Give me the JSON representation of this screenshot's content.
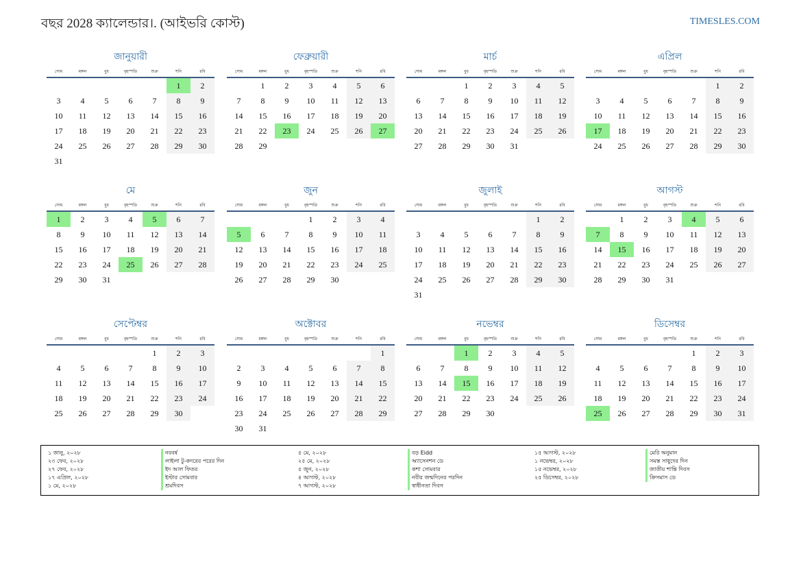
{
  "title": "বছর 2028 ক্যালেন্ডার।. (আইভরি কোস্ট)",
  "site": "TIMESLES.COM",
  "weekdays": [
    "সোম",
    "মঙ্গল",
    "বুধ",
    "বৃহস্পতি",
    "শুক্র",
    "শনি",
    "রবি"
  ],
  "months": [
    {
      "name": "জানুয়ারী",
      "offset": 5,
      "days": 31,
      "holidays": [
        1
      ]
    },
    {
      "name": "ফেব্রুয়ারী",
      "offset": 1,
      "days": 29,
      "holidays": [
        23,
        27
      ]
    },
    {
      "name": "মার্চ",
      "offset": 2,
      "days": 31,
      "holidays": []
    },
    {
      "name": "এপ্রিল",
      "offset": 5,
      "days": 30,
      "holidays": [
        17
      ]
    },
    {
      "name": "মে",
      "offset": 0,
      "days": 31,
      "holidays": [
        1,
        5,
        25
      ]
    },
    {
      "name": "জুন",
      "offset": 3,
      "days": 30,
      "holidays": [
        5
      ]
    },
    {
      "name": "জুলাই",
      "offset": 5,
      "days": 31,
      "holidays": []
    },
    {
      "name": "আগস্ট",
      "offset": 1,
      "days": 31,
      "holidays": [
        4,
        7,
        15
      ]
    },
    {
      "name": "সেপ্টেম্বর",
      "offset": 4,
      "days": 30,
      "holidays": []
    },
    {
      "name": "অক্টোবর",
      "offset": 6,
      "days": 31,
      "holidays": []
    },
    {
      "name": "নভেম্বর",
      "offset": 2,
      "days": 30,
      "holidays": [
        1,
        15
      ]
    },
    {
      "name": "ডিসেম্বর",
      "offset": 4,
      "days": 31,
      "holidays": [
        25
      ]
    }
  ],
  "holiday_list": [
    [
      {
        "date": "১ জানু, ২০২৮",
        "name": "নববর্ষ"
      },
      {
        "date": "২৩ ফেব, ২০২৮",
        "name": "লাইলা টু-কদরের পরের দিন"
      },
      {
        "date": "২৭ ফেব, ২০২৮",
        "name": "ইদ আল ফিতর"
      },
      {
        "date": "১৭ এপ্রিল, ২০২৮",
        "name": "ইস্টার সোমবার"
      },
      {
        "date": "১ মে, ২০২৮",
        "name": "শ্রমদিবস"
      }
    ],
    [
      {
        "date": "৫ মে, ২০২৮",
        "name": "বড় Eidd"
      },
      {
        "date": "২৫ মে, ২০২৮",
        "name": "অ্যাসেনশন ডে"
      },
      {
        "date": "৫ জুন, ২০২৮",
        "name": "কশা সোমবার"
      },
      {
        "date": "৪ আগস্ট, ২০২৮",
        "name": "নবীর জন্মদিনের পরদিন"
      },
      {
        "date": "৭ আগস্ট, ২০২৮",
        "name": "স্বাধীনতা দিবস"
      }
    ],
    [
      {
        "date": "১৫ আগস্ট, ২০২৮",
        "name": "মেরি অনুমান"
      },
      {
        "date": "১ নভেম্বর, ২০২৮",
        "name": "সমস্ত সাধুদের দিন"
      },
      {
        "date": "১৫ নভেম্বর, ২০২৮",
        "name": "জাতীয় শান্তি দিবস"
      },
      {
        "date": "২৫ ডিসেম্বর, ২০২৮",
        "name": "ক্রিসমাস ডে"
      }
    ]
  ],
  "colors": {
    "holiday": "#90ee90",
    "weekend": "#f2f2f2",
    "accent": "#2e6da4",
    "rule": "#3c5a82"
  }
}
